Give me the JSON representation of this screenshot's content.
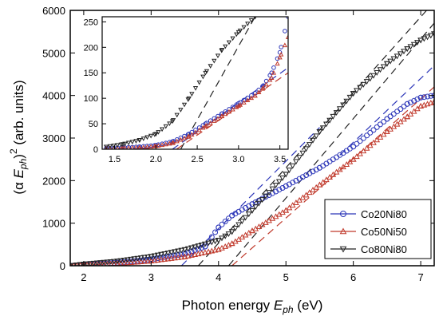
{
  "chart_data": {
    "type": "scatter",
    "xlabel": {
      "pre": "Photon energy ",
      "var": "E",
      "sub": "ph",
      "post": " (eV)"
    },
    "ylabel": {
      "pre": "(α ",
      "var": "E",
      "sub": "ph",
      "close": ")",
      "sup": "2",
      "post": " (arb. units)"
    },
    "xlim": [
      1.8,
      7.2
    ],
    "ylim": [
      0,
      6000
    ],
    "xticks": [
      2,
      3,
      4,
      5,
      6,
      7
    ],
    "yticks": [
      0,
      1000,
      2000,
      3000,
      4000,
      5000,
      6000
    ],
    "legend_position": "lower-right",
    "series": [
      {
        "name": "Co20Ni80",
        "marker": "circle",
        "color": "#2b35b8",
        "x": [
          1.8,
          2.0,
          2.5,
          3.0,
          3.5,
          3.8,
          4.0,
          4.2,
          4.5,
          5.0,
          5.5,
          6.0,
          6.5,
          6.8,
          7.0,
          7.2
        ],
        "y": [
          0,
          20,
          70,
          150,
          280,
          450,
          900,
          1180,
          1450,
          1870,
          2300,
          2800,
          3450,
          3800,
          3950,
          4000
        ]
      },
      {
        "name": "Co50Ni50",
        "marker": "triangle-up",
        "color": "#c0392b",
        "x": [
          1.8,
          2.0,
          2.5,
          3.0,
          3.5,
          4.0,
          4.2,
          4.5,
          5.0,
          5.5,
          6.0,
          6.5,
          6.8,
          7.0,
          7.2
        ],
        "y": [
          0,
          15,
          50,
          110,
          210,
          380,
          520,
          820,
          1300,
          1900,
          2500,
          3150,
          3500,
          3750,
          3850
        ]
      },
      {
        "name": "Co80Ni80",
        "marker": "triangle-down",
        "color": "#222222",
        "x": [
          1.8,
          2.0,
          2.5,
          3.0,
          3.5,
          4.0,
          4.2,
          4.5,
          5.0,
          5.5,
          6.0,
          6.5,
          6.8,
          7.0,
          7.2
        ],
        "y": [
          0,
          40,
          110,
          220,
          380,
          600,
          800,
          1300,
          2150,
          3150,
          4050,
          4750,
          5100,
          5300,
          5450
        ]
      }
    ],
    "fit_lines": [
      {
        "color": "#2b35b8",
        "from": [
          3.45,
          0
        ],
        "to": [
          5.5,
          3250
        ]
      },
      {
        "color": "#2b35b8",
        "from": [
          5.8,
          2600
        ],
        "to": [
          7.2,
          4700
        ]
      },
      {
        "color": "#c0392b",
        "from": [
          4.2,
          0
        ],
        "to": [
          7.2,
          4200
        ]
      },
      {
        "color": "#222222",
        "from": [
          4.15,
          0
        ],
        "to": [
          7.2,
          5700
        ]
      },
      {
        "color": "#222222",
        "from": [
          3.7,
          0
        ],
        "to": [
          7.2,
          6200
        ]
      }
    ],
    "inset": {
      "xlim": [
        1.35,
        3.6
      ],
      "ylim": [
        0,
        260
      ],
      "xticks": [
        1.5,
        2.0,
        2.5,
        3.0,
        3.5
      ],
      "xtick_labels": [
        "1.5",
        "2.0",
        "2.5",
        "3.0",
        "3.5"
      ],
      "yticks": [
        0,
        50,
        100,
        150,
        200,
        250
      ],
      "series": [
        {
          "name": "Co20Ni80",
          "marker": "circle",
          "color": "#2b35b8",
          "x": [
            1.4,
            1.6,
            1.8,
            2.0,
            2.2,
            2.4,
            2.6,
            2.8,
            3.0,
            3.2,
            3.3,
            3.4,
            3.5,
            3.6
          ],
          "y": [
            2,
            3,
            5,
            8,
            15,
            30,
            50,
            70,
            90,
            110,
            125,
            150,
            190,
            260
          ]
        },
        {
          "name": "Co50Ni50",
          "marker": "triangle-up",
          "color": "#c0392b",
          "x": [
            1.4,
            1.6,
            1.8,
            2.0,
            2.2,
            2.4,
            2.6,
            2.8,
            3.0,
            3.2,
            3.3,
            3.4,
            3.5,
            3.6
          ],
          "y": [
            1,
            2,
            3,
            6,
            12,
            25,
            45,
            65,
            85,
            105,
            120,
            140,
            180,
            220
          ]
        },
        {
          "name": "Co80Ni80",
          "marker": "triangle-down",
          "color": "#222222",
          "x": [
            1.4,
            1.6,
            1.8,
            2.0,
            2.2,
            2.4,
            2.6,
            2.8,
            3.0,
            3.2
          ],
          "y": [
            5,
            10,
            18,
            30,
            55,
            100,
            150,
            195,
            230,
            260
          ]
        }
      ],
      "fit_lines": [
        {
          "color": "#2b35b8",
          "from": [
            2.2,
            0
          ],
          "to": [
            3.6,
            160
          ]
        },
        {
          "color": "#c0392b",
          "from": [
            2.25,
            0
          ],
          "to": [
            3.6,
            150
          ]
        },
        {
          "color": "#222222",
          "from": [
            2.3,
            0
          ],
          "to": [
            3.2,
            260
          ]
        }
      ]
    }
  }
}
